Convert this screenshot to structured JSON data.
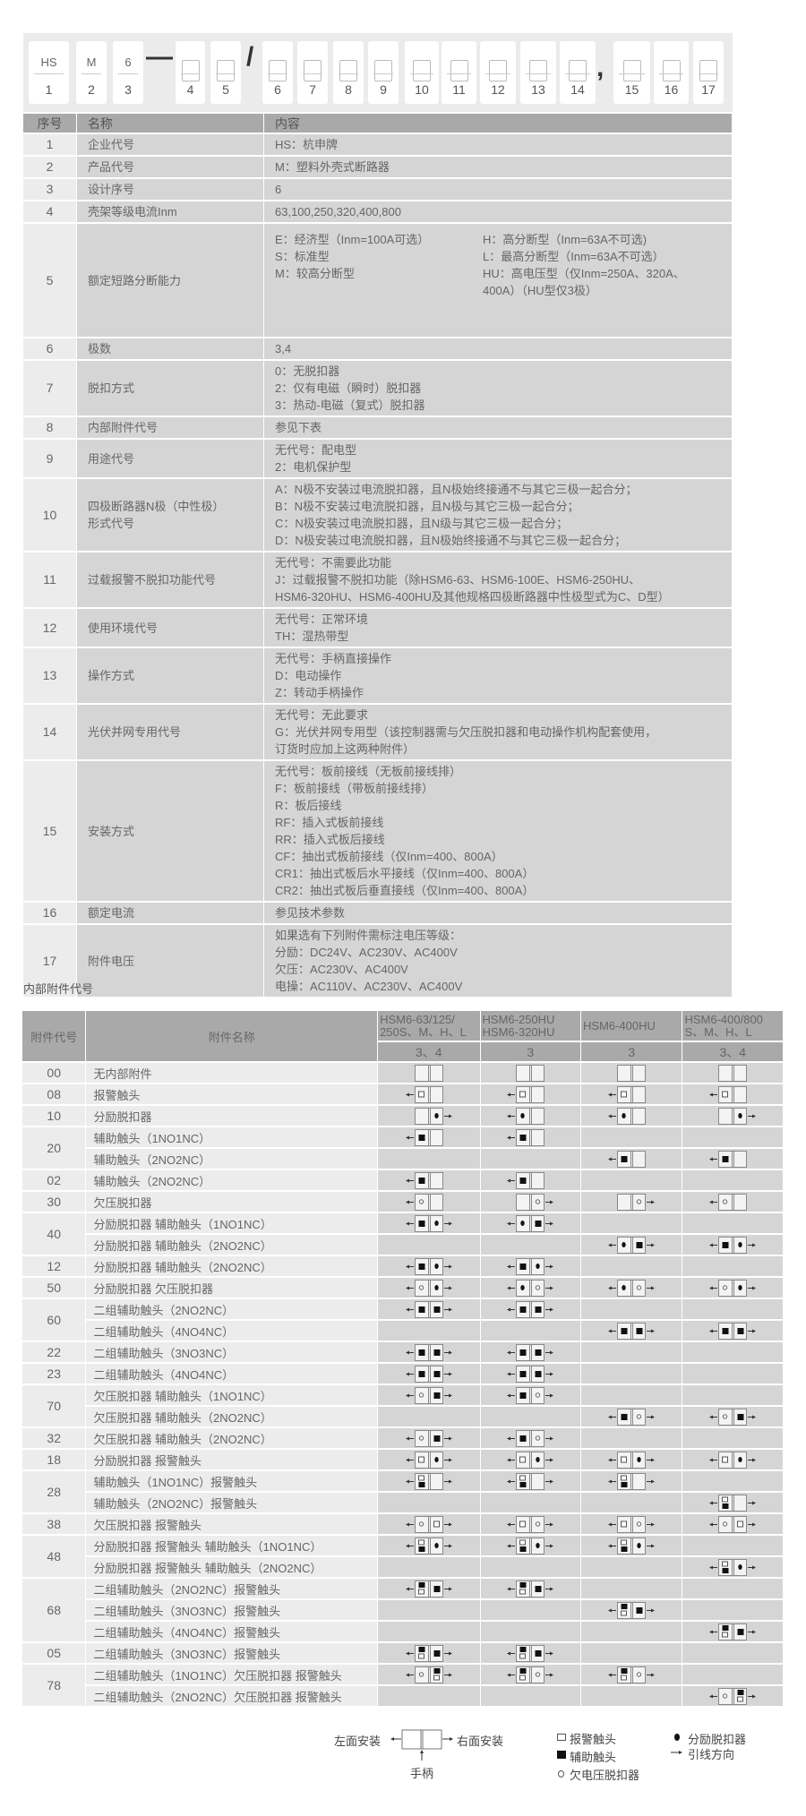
{
  "model_code": {
    "boxes": [
      {
        "top": "HS",
        "num": "1"
      },
      {
        "top": "M",
        "num": "2"
      },
      {
        "top": "6",
        "num": "3"
      },
      {
        "top": "",
        "num": "4"
      },
      {
        "top": "",
        "num": "5"
      },
      {
        "top": "",
        "num": "6"
      },
      {
        "top": "",
        "num": "7"
      },
      {
        "top": "",
        "num": "8"
      },
      {
        "top": "",
        "num": "9"
      },
      {
        "top": "",
        "num": "10"
      },
      {
        "top": "",
        "num": "11"
      },
      {
        "top": "",
        "num": "12"
      },
      {
        "top": "",
        "num": "13"
      },
      {
        "top": "",
        "num": "14"
      },
      {
        "top": "",
        "num": "15"
      },
      {
        "top": "",
        "num": "16"
      },
      {
        "top": "",
        "num": "17"
      }
    ],
    "separators": [
      "—",
      "/",
      ","
    ]
  },
  "spec_table": {
    "headers": [
      "序号",
      "名称",
      "内容"
    ],
    "rows": [
      {
        "no": "1",
        "name": [
          "企业代号"
        ],
        "content": [
          "HS：杭申牌"
        ]
      },
      {
        "no": "2",
        "name": [
          "产品代号"
        ],
        "content": [
          "M：塑料外壳式断路器"
        ]
      },
      {
        "no": "3",
        "name": [
          "设计序号"
        ],
        "content": [
          "6"
        ]
      },
      {
        "no": "4",
        "name": [
          "壳架等级电流Inm"
        ],
        "content": [
          "63,100,250,320,400,800"
        ]
      },
      {
        "no": "5",
        "name": [
          "额定短路分断能力"
        ],
        "content_left": [
          "E：经济型（Inm=100A可选）",
          "S：标准型",
          "M：较高分断型"
        ],
        "content_right": [
          "H：高分断型（Inm=63A不可选)",
          "L：最高分断型（Inm=63A不可选）",
          "HU：高电压型（仅Inm=250A、320A、",
          "400A）（HU型仅3极）"
        ]
      },
      {
        "no": "6",
        "name": [
          "极数"
        ],
        "content": [
          "3,4"
        ]
      },
      {
        "no": "7",
        "name": [
          "脱扣方式"
        ],
        "content": [
          "0：无脱扣器",
          "2：仅有电磁（瞬时）脱扣器",
          "3：热动-电磁（复式）脱扣器"
        ]
      },
      {
        "no": "8",
        "name": [
          "内部附件代号"
        ],
        "content": [
          "参见下表"
        ]
      },
      {
        "no": "9",
        "name": [
          "用途代号"
        ],
        "content": [
          "无代号：配电型",
          "2：电机保护型"
        ]
      },
      {
        "no": "10",
        "name": [
          "四极断路器N极（中性极）",
          "形式代号"
        ],
        "content": [
          "A：N极不安装过电流脱扣器，且N极始终接通不与其它三极一起合分；",
          "B：N极不安装过电流脱扣器，且N极与其它三极一起合分；",
          "C：N极安装过电流脱扣器，且N级与其它三极一起合分；",
          "D：N极安装过电流脱扣器，且N极始终接通不与其它三极一起合分；"
        ]
      },
      {
        "no": "11",
        "name": [
          "过载报警不脱扣功能代号"
        ],
        "content": [
          "无代号：不需要此功能",
          "J：过载报警不脱扣功能（除HSM6-63、HSM6-100E、HSM6-250HU、",
          "HSM6-320HU、HSM6-400HU及其他规格四极断路器中性极型式为C、D型）"
        ]
      },
      {
        "no": "12",
        "name": [
          "使用环境代号"
        ],
        "content": [
          "无代号：正常环境",
          "TH：湿热带型"
        ]
      },
      {
        "no": "13",
        "name": [
          "操作方式"
        ],
        "content": [
          "无代号：手柄直接操作",
          "D：电动操作",
          "Z：转动手柄操作"
        ]
      },
      {
        "no": "14",
        "name": [
          "光伏并网专用代号"
        ],
        "content": [
          "无代号：无此要求",
          "G：光伏并网专用型（该控制器需与欠压脱扣器和电动操作机构配套使用，",
          "订货时应加上这两种附件）"
        ]
      },
      {
        "no": "15",
        "name": [
          "安装方式"
        ],
        "content": [
          "无代号：板前接线（无板前接线排）",
          "F：板前接线（带板前接线排）",
          "R：板后接线",
          "RF：插入式板前接线",
          "RR：插入式板后接线",
          "CF：抽出式板前接线（仅Inm=400、800A）",
          "CR1：抽出式板后水平接线（仅Inm=400、800A）",
          "CR2：抽出式板后垂直接线（仅Inm=400、800A）"
        ]
      },
      {
        "no": "16",
        "name": [
          "额定电流"
        ],
        "content": [
          "参见技术参数"
        ]
      },
      {
        "no": "17",
        "name": [
          "附件电压"
        ],
        "content": [
          "如果选有下列附件需标注电压等级：",
          "分励：DC24V、AC230V、AC400V",
          "欠压：AC230V、AC400V",
          "电操：AC110V、AC230V、AC400V"
        ]
      }
    ]
  },
  "accessory_section_title": "内部附件代号",
  "accessory_table": {
    "header_code": "附件代号",
    "header_name": "附件名称",
    "models": [
      {
        "lines": [
          "HSM6-63/125/",
          "250S、M、H、L"
        ],
        "poles": "3、4"
      },
      {
        "lines": [
          "HSM6-250HU",
          "HSM6-320HU"
        ],
        "poles": "3"
      },
      {
        "lines": [
          "HSM6-400HU"
        ],
        "poles": "3"
      },
      {
        "lines": [
          "HSM6-400/800",
          "S、M、H、L"
        ],
        "poles": "3、4"
      }
    ],
    "symbol_key": "each cell: [left lead arrow, left half, right half, right lead arrow]; a=alarm contact, x=auxiliary contact, u=undervoltage release, s=shunt release, k=alarm over auxiliary, j=auxiliary over alarm, -=empty, <,> = lead direction, .=none",
    "groups": [
      {
        "code": "00",
        "items": [
          {
            "name": "无内部附件",
            "cells": [
              ".--.",
              ".--.",
              ".--.",
              ".--."
            ]
          }
        ]
      },
      {
        "code": "08",
        "items": [
          {
            "name": "报警触头",
            "cells": [
              "<a-.",
              "<a-.",
              "<a-.",
              "<a-."
            ]
          }
        ]
      },
      {
        "code": "10",
        "items": [
          {
            "name": "分励脱扣器",
            "cells": [
              ".-s>",
              "<s-.",
              "<s-.",
              ".-s>"
            ]
          }
        ]
      },
      {
        "code": "20",
        "items": [
          {
            "name": "辅助触头（1NO1NC）",
            "cells": [
              "<x-.",
              "<x-.",
              "",
              ""
            ]
          },
          {
            "name": "辅助触头（2NO2NC）",
            "cells": [
              "",
              "",
              "<x-.",
              "<x-."
            ]
          }
        ]
      },
      {
        "code": "02",
        "items": [
          {
            "name": "辅助触头（2NO2NC）",
            "cells": [
              "<x-.",
              "<x-.",
              "",
              ""
            ]
          }
        ]
      },
      {
        "code": "30",
        "items": [
          {
            "name": "欠压脱扣器",
            "cells": [
              "<u-.",
              ".-u>",
              ".-u>",
              "<u-."
            ]
          }
        ]
      },
      {
        "code": "40",
        "items": [
          {
            "name": "分励脱扣器 辅助触头（1NO1NC）",
            "cells": [
              "<xs>",
              "<sx>",
              "",
              ""
            ]
          },
          {
            "name": "分励脱扣器 辅助触头（2NO2NC）",
            "cells": [
              "",
              "",
              "<sx>",
              "<xs>"
            ]
          }
        ]
      },
      {
        "code": "12",
        "items": [
          {
            "name": "分励脱扣器 辅助触头（2NO2NC）",
            "cells": [
              "<xs>",
              "<xs>",
              "",
              ""
            ]
          }
        ]
      },
      {
        "code": "50",
        "items": [
          {
            "name": "分励脱扣器 欠压脱扣器",
            "cells": [
              "<us>",
              "<su>",
              "<su>",
              "<us>"
            ]
          }
        ]
      },
      {
        "code": "60",
        "items": [
          {
            "name": "二组辅助触头（2NO2NC）",
            "cells": [
              "<xx>",
              "<xx>",
              "",
              ""
            ]
          },
          {
            "name": "二组辅助触头（4NO4NC）",
            "cells": [
              "",
              "",
              "<xx>",
              "<xx>"
            ]
          }
        ]
      },
      {
        "code": "22",
        "items": [
          {
            "name": "二组辅助触头（3NO3NC）",
            "cells": [
              "<xx>",
              "<xx>",
              "",
              ""
            ]
          }
        ]
      },
      {
        "code": "23",
        "items": [
          {
            "name": "二组辅助触头（4NO4NC）",
            "cells": [
              "<xx>",
              "<xx>",
              "",
              ""
            ]
          }
        ]
      },
      {
        "code": "70",
        "items": [
          {
            "name": "欠压脱扣器 辅助触头（1NO1NC）",
            "cells": [
              "<ux>",
              "<xu>",
              "",
              ""
            ]
          },
          {
            "name": "欠压脱扣器 辅助触头（2NO2NC）",
            "cells": [
              "",
              "",
              "<xu>",
              "<ux>"
            ]
          }
        ]
      },
      {
        "code": "32",
        "items": [
          {
            "name": "欠压脱扣器 辅助触头（2NO2NC）",
            "cells": [
              "<ux>",
              "<xu>",
              "",
              ""
            ]
          }
        ]
      },
      {
        "code": "18",
        "items": [
          {
            "name": "分励脱扣器 报警触头",
            "cells": [
              "<as>",
              "<as>",
              "<as>",
              "<as>"
            ]
          }
        ]
      },
      {
        "code": "28",
        "items": [
          {
            "name": "辅助触头（1NO1NC）报警触头",
            "cells": [
              "<k->",
              "<k->",
              "<k->",
              ""
            ]
          },
          {
            "name": "辅助触头（2NO2NC）报警触头",
            "cells": [
              "",
              "",
              "",
              "<k->"
            ]
          }
        ]
      },
      {
        "code": "38",
        "items": [
          {
            "name": "欠压脱扣器 报警触头",
            "cells": [
              "<ua>",
              "<au>",
              "<au>",
              "<ua>"
            ]
          }
        ]
      },
      {
        "code": "48",
        "items": [
          {
            "name": "分励脱扣器 报警触头 辅助触头（1NO1NC）",
            "cells": [
              "<ks>",
              "<ks>",
              "<ks>",
              ""
            ]
          },
          {
            "name": "分励脱扣器 报警触头 辅助触头（2NO2NC）",
            "cells": [
              "",
              "",
              "",
              "<ks>"
            ]
          }
        ]
      },
      {
        "code": "68",
        "items": [
          {
            "name": "二组辅助触头（2NO2NC）报警触头",
            "cells": [
              "<jx>",
              "<jx>",
              "",
              ""
            ]
          },
          {
            "name": "二组辅助触头（3NO3NC）报警触头",
            "cells": [
              "",
              "",
              "<jx>",
              ""
            ]
          },
          {
            "name": "二组辅助触头（4NO4NC）报警触头",
            "cells": [
              "",
              "",
              "",
              "<jx>"
            ]
          }
        ]
      },
      {
        "code": "05",
        "items": [
          {
            "name": "二组辅助触头（3NO3NC）报警触头",
            "cells": [
              "<jx>",
              "<jx>",
              "",
              ""
            ]
          }
        ]
      },
      {
        "code": "78",
        "items": [
          {
            "name": "二组辅助触头（1NO1NC）欠压脱扣器 报警触头",
            "cells": [
              "<uj>",
              "<ju>",
              "<ju>",
              ""
            ]
          },
          {
            "name": "二组辅助触头（2NO2NC）欠压脱扣器 报警触头",
            "cells": [
              "",
              "",
              "",
              "<uj>"
            ]
          }
        ]
      }
    ]
  },
  "legend": {
    "left_mount": "左面安装",
    "right_mount": "右面安装",
    "handle": "手柄",
    "alarm": "报警触头",
    "auxiliary": "辅助触头",
    "undervoltage": "欠电压脱扣器",
    "shunt": "分励脱扣器",
    "lead_direction": "引线方向"
  }
}
